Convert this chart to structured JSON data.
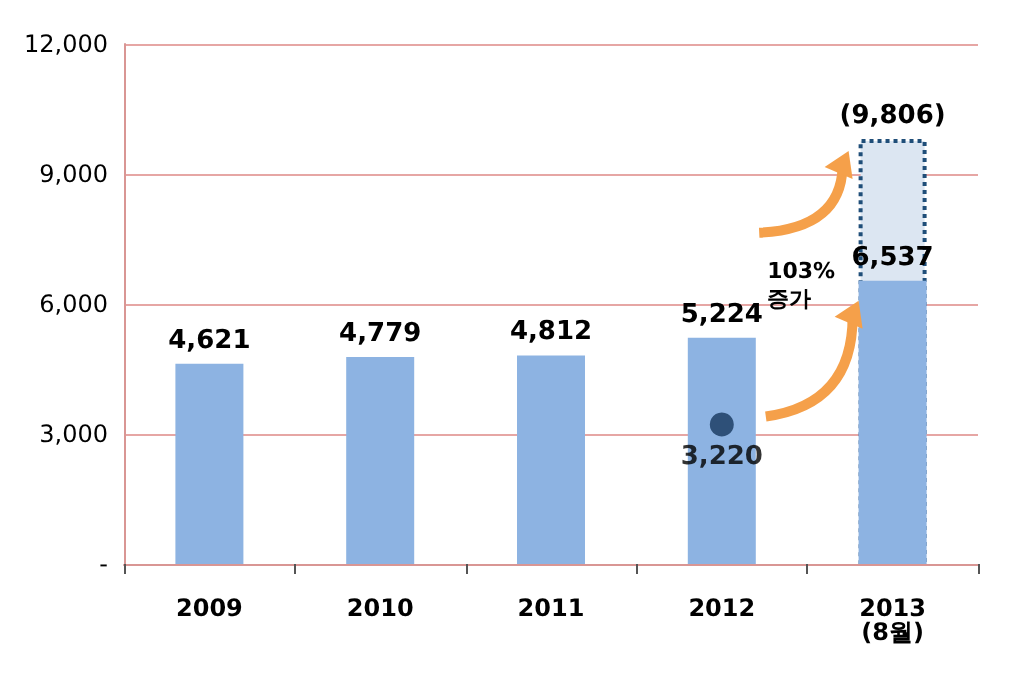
{
  "chart_data": {
    "type": "bar",
    "categories": [
      "2009",
      "2010",
      "2011",
      "2012",
      "2013\n(8월)"
    ],
    "series": [
      {
        "values": [
          null,
          null,
          null,
          null,
          9806
        ],
        "color": "#dce6f2",
        "line_style": "dotted",
        "value_labels": [
          null,
          null,
          null,
          null,
          "(9,806)"
        ]
      },
      {
        "values": [
          4621,
          4779,
          4812,
          5224,
          6537
        ],
        "color": "#8db3e2",
        "value_labels": [
          "4,621",
          "4,779",
          "4,812",
          "5,224",
          "6,537"
        ]
      },
      {
        "type": "scatter",
        "values": [
          null,
          null,
          null,
          3220,
          null
        ],
        "color": "#17375e",
        "marker": "circle",
        "value_labels": [
          null,
          null,
          null,
          "3,220",
          null
        ]
      }
    ],
    "ylim": [
      0,
      12000
    ],
    "yticks": [
      {
        "value": 0,
        "label": "-"
      },
      {
        "value": 3000,
        "label": "3,000"
      },
      {
        "value": 6000,
        "label": "6,000"
      },
      {
        "value": 9000,
        "label": "9,000"
      },
      {
        "value": 12000,
        "label": "12,000"
      }
    ],
    "grid": "y",
    "annotations": [
      "103%\n증가"
    ]
  }
}
